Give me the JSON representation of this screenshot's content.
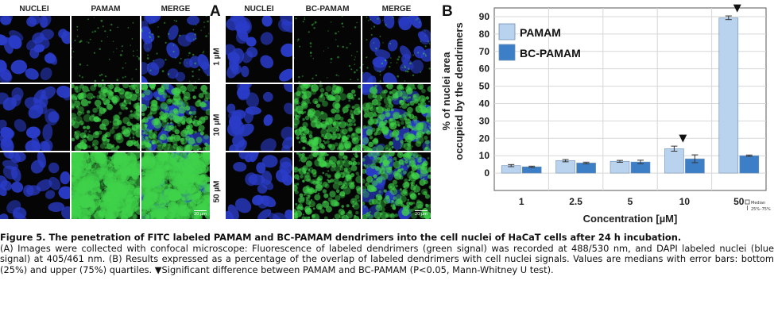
{
  "panel_a": {
    "letter": "A",
    "left_headers": [
      "NUCLEI",
      "PAMAM",
      "MERGE"
    ],
    "right_headers": [
      "NUCLEI",
      "BC-PAMAM",
      "MERGE"
    ],
    "concentrations": [
      "1 µM",
      "10 µM",
      "50 µM"
    ],
    "scale_bar": "20 µm",
    "colors": {
      "nuclei": "#2a3cc8",
      "dendrimer": "#3fd24a",
      "background": "#050505"
    }
  },
  "panel_b": {
    "letter": "B"
  },
  "chart_data": {
    "type": "bar",
    "categories": [
      "1",
      "2.5",
      "5",
      "10",
      "50"
    ],
    "series": [
      {
        "name": "PAMAM",
        "color": "#b9d2ee",
        "values": [
          4.3,
          7.2,
          6.8,
          14.0,
          89.3
        ],
        "q25": [
          3.7,
          6.5,
          6.2,
          12.6,
          88.3
        ],
        "q75": [
          4.9,
          7.8,
          7.3,
          15.5,
          90.4
        ]
      },
      {
        "name": "BC-PAMAM",
        "color": "#3d7fc6",
        "values": [
          3.6,
          5.8,
          6.4,
          8.2,
          10.0
        ],
        "q25": [
          3.2,
          5.3,
          5.4,
          6.0,
          9.6
        ],
        "q75": [
          4.0,
          6.3,
          7.4,
          10.5,
          10.4
        ]
      }
    ],
    "ylim": [
      -10,
      95
    ],
    "yticks": [
      0,
      10,
      20,
      30,
      40,
      50,
      60,
      70,
      80,
      90
    ],
    "ylabel_line1": "% of nuclei area",
    "ylabel_line2": "occupied by the dendrimers",
    "xlabel": "Concentration [µM]",
    "significant_marker": "▼",
    "significant_categories": [
      "10",
      "50"
    ],
    "legend_placement": "top-left",
    "mini_legend": [
      "Median",
      "25%–75%"
    ],
    "grid": true
  },
  "caption": {
    "title": "Figure 5. The penetration of FITC labeled PAMAM and BC-PAMAM dendrimers into the cell nuclei of HaCaT cells after 24 h incubation.",
    "body": "(A) Images were collected with confocal microscope: Fluorescence of labeled dendrimers (green signal) was recorded at 488/530 nm, and DAPI labeled nuclei (blue signal) at 405/461 nm. (B) Results expressed as a percentage of the overlap of labeled dendrimers with cell nuclei signals. Values are medians with error bars: bottom (25%) and upper (75%) quartiles. ▼Significant difference between PAMAM and BC-PAMAM (P<0.05, Mann-Whitney U test)."
  }
}
